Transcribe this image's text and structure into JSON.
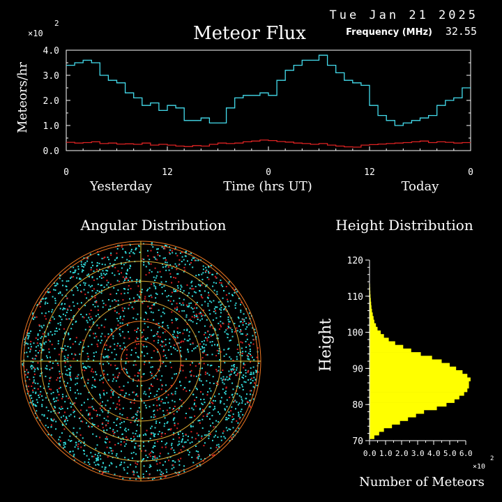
{
  "header": {
    "date": "Tue Jan 21 2025",
    "freq_label": "Frequency (MHz)",
    "freq_value": "32.55"
  },
  "colors": {
    "background": "#000000",
    "flux_line": "#44ddee",
    "baseline_line": "#dd2222",
    "angular_points": "#33dddd",
    "angular_hot": "#dd2222",
    "ring": "#ee7722",
    "ring_inner": "#ddaa33",
    "crosshair": "#ddcc33",
    "height_fill": "#ffff00",
    "text": "#ffffff"
  },
  "chart_data": [
    {
      "type": "line",
      "title": "Meteor Flux",
      "ylabel": "Meteors/hr",
      "xlabel": "Time (hrs UT)",
      "y_multiplier": "×10",
      "y_multiplier_exp": "2",
      "ylim": [
        0,
        4
      ],
      "xlim": [
        0,
        48
      ],
      "yticks": [
        "0.0",
        "1.0",
        "2.0",
        "3.0",
        "4.0"
      ],
      "xticks": [
        {
          "v": 0,
          "label": "0"
        },
        {
          "v": 12,
          "label": "12"
        },
        {
          "v": 24,
          "label": "0"
        },
        {
          "v": 36,
          "label": "12"
        },
        {
          "v": 48,
          "label": "0"
        }
      ],
      "day_labels": [
        {
          "v": 6.5,
          "label": "Yesterday"
        },
        {
          "v": 42,
          "label": "Today"
        }
      ],
      "step": true,
      "series": [
        {
          "values": [
            3.4,
            3.5,
            3.6,
            3.5,
            3.0,
            2.8,
            2.7,
            2.3,
            2.1,
            1.8,
            1.9,
            1.6,
            1.8,
            1.7,
            1.2,
            1.2,
            1.3,
            1.1,
            1.1,
            1.7,
            2.1,
            2.2,
            2.2,
            2.3,
            2.2,
            2.8,
            3.2,
            3.4,
            3.6,
            3.6,
            3.8,
            3.4,
            3.1,
            2.8,
            2.7,
            2.6,
            1.8,
            1.4,
            1.2,
            1.0,
            1.1,
            1.2,
            1.3,
            1.4,
            1.8,
            2.0,
            2.1,
            2.5
          ]
        },
        {
          "values": [
            0.33,
            0.3,
            0.32,
            0.35,
            0.28,
            0.3,
            0.26,
            0.27,
            0.25,
            0.3,
            0.22,
            0.25,
            0.22,
            0.18,
            0.16,
            0.2,
            0.18,
            0.25,
            0.3,
            0.28,
            0.3,
            0.35,
            0.38,
            0.42,
            0.4,
            0.36,
            0.34,
            0.3,
            0.28,
            0.25,
            0.28,
            0.22,
            0.18,
            0.15,
            0.14,
            0.22,
            0.24,
            0.26,
            0.28,
            0.3,
            0.32,
            0.35,
            0.38,
            0.32,
            0.35,
            0.33,
            0.3,
            0.32
          ]
        }
      ]
    },
    {
      "type": "scatter",
      "title": "Angular Distribution",
      "rings": 6
    },
    {
      "type": "bar",
      "title": "Height Distribution",
      "ylabel": "Height",
      "xlabel": "Number of Meteors",
      "x_multiplier": "×10",
      "x_multiplier_exp": "2",
      "ylim": [
        70,
        120
      ],
      "xlim": [
        0,
        6.0
      ],
      "yticks": [
        "70",
        "80",
        "90",
        "100",
        "110",
        "120"
      ],
      "xticks": [
        "0.0",
        "1.0",
        "2.0",
        "3.0",
        "4.0",
        "5.0",
        "6.0"
      ],
      "heights": [
        71,
        72,
        73,
        74,
        75,
        76,
        77,
        78,
        79,
        80,
        81,
        82,
        83,
        84,
        85,
        86,
        87,
        88,
        89,
        90,
        91,
        92,
        93,
        94,
        95,
        96,
        97,
        98,
        99,
        100,
        101,
        102,
        103,
        104,
        105,
        106,
        107,
        108,
        109,
        110,
        111,
        112,
        113,
        114,
        115,
        116,
        117,
        118,
        119
      ],
      "values": [
        0.3,
        0.6,
        0.9,
        1.4,
        1.9,
        2.4,
        2.9,
        3.4,
        4.2,
        4.8,
        5.3,
        5.6,
        5.9,
        6.1,
        6.2,
        6.2,
        6.3,
        6.1,
        5.8,
        5.4,
        5.0,
        4.5,
        3.9,
        3.2,
        2.6,
        2.1,
        1.6,
        1.2,
        0.9,
        0.7,
        0.5,
        0.4,
        0.3,
        0.25,
        0.2,
        0.15,
        0.12,
        0.1,
        0.08,
        0.06,
        0.05,
        0.04,
        0.03,
        0.02,
        0.02,
        0.01,
        0.01,
        0.01,
        0.01
      ]
    }
  ]
}
